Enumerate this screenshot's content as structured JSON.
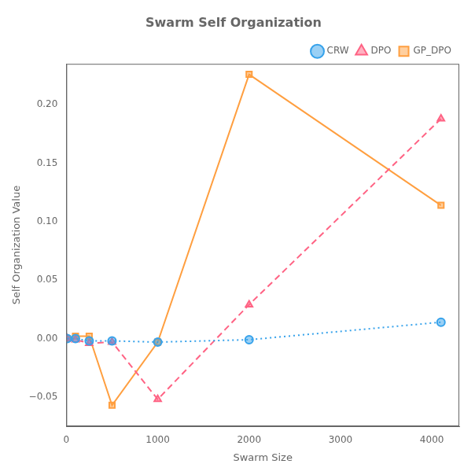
{
  "chart_data": {
    "type": "line",
    "title": "Swarm Self Organization",
    "xlabel": "Swarm Size",
    "ylabel": "Self Organization Value",
    "x": [
      10,
      100,
      250,
      500,
      1000,
      2000,
      4100
    ],
    "series": [
      {
        "name": "CRW",
        "values": [
          0.0,
          0.0,
          -0.002,
          -0.002,
          -0.003,
          -0.001,
          0.014
        ],
        "marker": "circle",
        "line_style": "dotted"
      },
      {
        "name": "DPO",
        "values": [
          0.0,
          -0.001,
          -0.004,
          -0.003,
          -0.052,
          0.029,
          0.188
        ],
        "marker": "triangle",
        "line_style": "dashed"
      },
      {
        "name": "GP_DPO",
        "values": [
          0.0,
          0.002,
          0.002,
          -0.057,
          -0.003,
          0.226,
          0.114
        ],
        "marker": "square",
        "line_style": "solid"
      }
    ],
    "xlim": [
      0,
      4300
    ],
    "xticks": [
      0,
      1000,
      2000,
      3000,
      4000
    ],
    "ylim": [
      -0.075,
      0.235
    ],
    "yticks": [
      {
        "value": -0.05,
        "label": "−0.05"
      },
      {
        "value": 0,
        "label": "0.00"
      },
      0.05,
      {
        "value": 0.1,
        "label": "0.10"
      },
      0.15,
      {
        "value": 0.2,
        "label": "0.20"
      }
    ],
    "grid": false,
    "legend": "upper right"
  }
}
